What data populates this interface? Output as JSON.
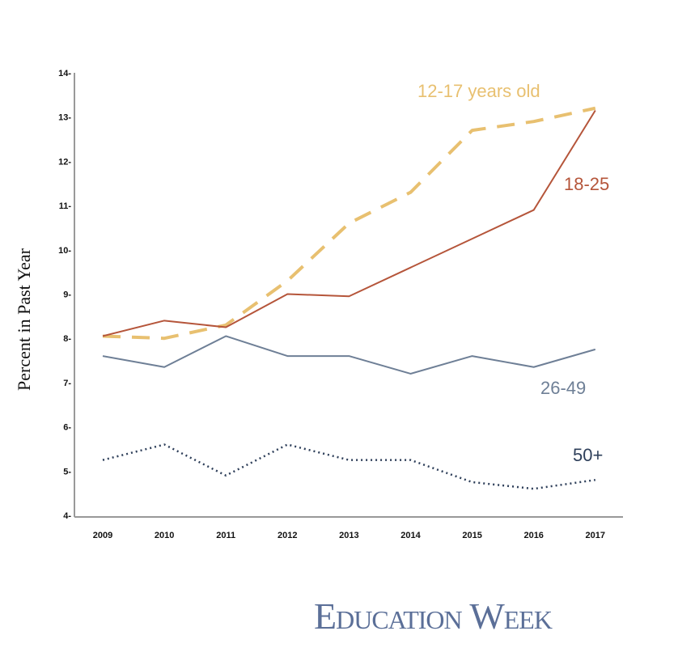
{
  "chart_data": {
    "type": "line",
    "title": "",
    "xlabel": "",
    "ylabel": "Percent in Past Year",
    "ylim": [
      4,
      14
    ],
    "yticks": [
      4,
      5,
      6,
      7,
      8,
      9,
      10,
      11,
      12,
      13,
      14
    ],
    "categories": [
      "2009",
      "2010",
      "2011",
      "2012",
      "2013",
      "2014",
      "2015",
      "2016",
      "2017"
    ],
    "grid": false,
    "series": [
      {
        "name": "12-17 years old",
        "color": "#e8c070",
        "style": "dashed",
        "values": [
          8.05,
          8.0,
          8.3,
          9.3,
          10.6,
          11.3,
          12.7,
          12.9,
          13.2
        ]
      },
      {
        "name": "18-25",
        "color": "#b5553a",
        "style": "solid",
        "values": [
          8.05,
          8.4,
          8.25,
          9.0,
          8.95,
          9.6,
          10.25,
          10.9,
          13.15
        ]
      },
      {
        "name": "26-49",
        "color": "#6e7f96",
        "style": "solid",
        "values": [
          7.6,
          7.35,
          8.05,
          7.6,
          7.6,
          7.2,
          7.6,
          7.35,
          7.75
        ]
      },
      {
        "name": "50+",
        "color": "#2e3f5a",
        "style": "dotted",
        "values": [
          5.25,
          5.6,
          4.9,
          5.6,
          5.25,
          5.25,
          4.75,
          4.6,
          4.8
        ]
      }
    ]
  },
  "logo": "Education Week"
}
